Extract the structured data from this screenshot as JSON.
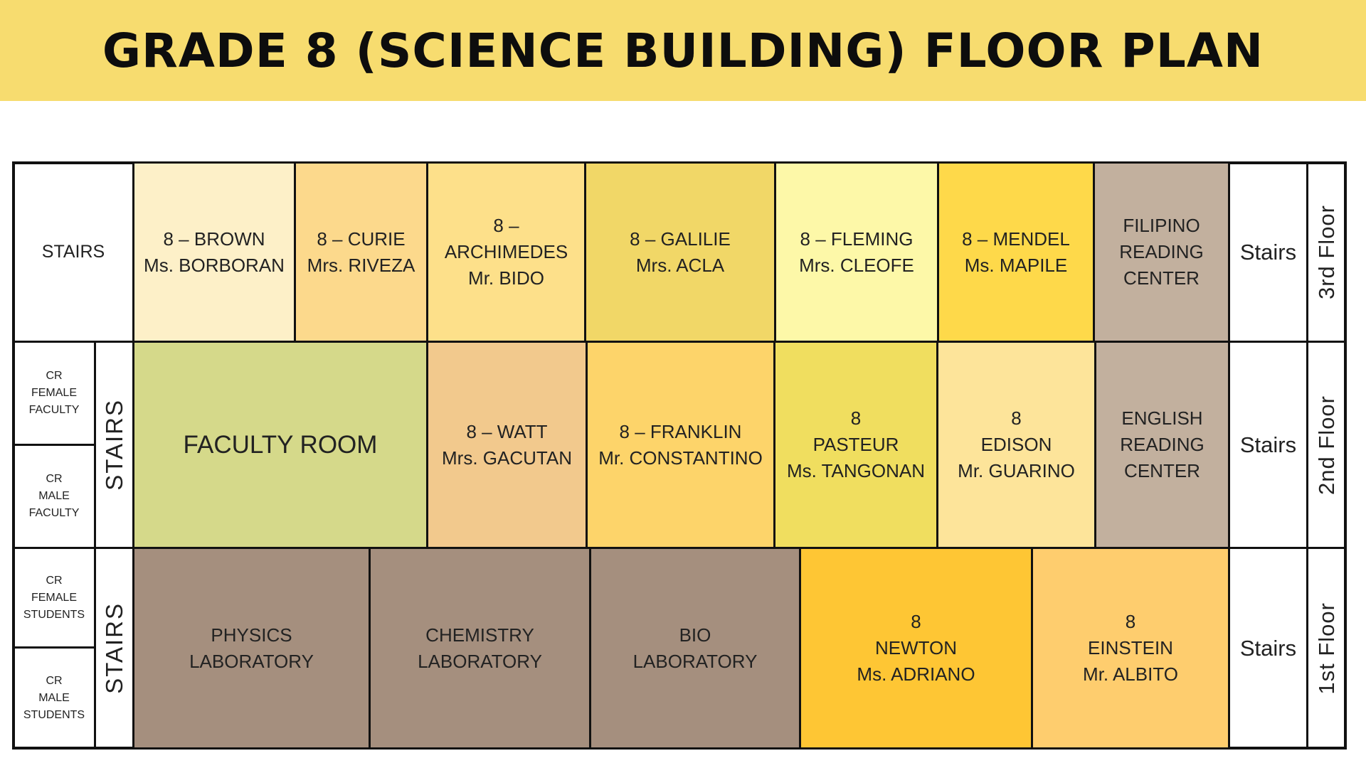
{
  "title": "GRADE 8 (SCIENCE BUILDING) FLOOR PLAN",
  "colors": {
    "banner": "#f7dc6f",
    "faculty_room": "#d5d98a",
    "laboratory": "#a58f7e",
    "reading_center": "#c2b09e"
  },
  "floors": {
    "third": {
      "label": "3rd Floor",
      "stairs_left": "STAIRS",
      "stairs_right": "Stairs",
      "rooms": [
        {
          "lines": [
            "8 – BROWN",
            "Ms. BORBORAN"
          ]
        },
        {
          "lines": [
            "8 – CURIE",
            "Mrs. RIVEZA"
          ]
        },
        {
          "lines": [
            "8 –",
            "ARCHIMEDES",
            "Mr. BIDO"
          ]
        },
        {
          "lines": [
            "8 – GALILIE",
            "Mrs. ACLA"
          ]
        },
        {
          "lines": [
            "8 – FLEMING",
            "Mrs. CLEOFE"
          ]
        },
        {
          "lines": [
            "8 – MENDEL",
            "Ms. MAPILE"
          ]
        },
        {
          "lines": [
            "FILIPINO",
            "READING",
            "CENTER"
          ]
        }
      ]
    },
    "second": {
      "label": "2nd Floor",
      "stairs_left": "STAIRS",
      "stairs_right": "Stairs",
      "restrooms": [
        {
          "lines": [
            "CR",
            "FEMALE",
            "FACULTY"
          ]
        },
        {
          "lines": [
            "CR",
            "MALE",
            "FACULTY"
          ]
        }
      ],
      "rooms": [
        {
          "lines": [
            "FACULTY ROOM"
          ]
        },
        {
          "lines": [
            "8 – WATT",
            "Mrs. GACUTAN"
          ]
        },
        {
          "lines": [
            "8 – FRANKLIN",
            "Mr. CONSTANTINO"
          ]
        },
        {
          "lines": [
            "8",
            "PASTEUR",
            "Ms. TANGONAN"
          ]
        },
        {
          "lines": [
            "8",
            "EDISON",
            "Mr. GUARINO"
          ]
        },
        {
          "lines": [
            "ENGLISH",
            "READING",
            "CENTER"
          ]
        }
      ]
    },
    "first": {
      "label": "1st Floor",
      "stairs_left": "STAIRS",
      "stairs_right": "Stairs",
      "restrooms": [
        {
          "lines": [
            "CR",
            "FEMALE",
            "STUDENTS"
          ]
        },
        {
          "lines": [
            "CR",
            "MALE",
            "STUDENTS"
          ]
        }
      ],
      "rooms": [
        {
          "lines": [
            "PHYSICS",
            "LABORATORY"
          ]
        },
        {
          "lines": [
            "CHEMISTRY",
            "LABORATORY"
          ]
        },
        {
          "lines": [
            "BIO",
            "LABORATORY"
          ]
        },
        {
          "lines": [
            "8",
            "NEWTON",
            "Ms. ADRIANO"
          ]
        },
        {
          "lines": [
            "8",
            "EINSTEIN",
            "Mr. ALBITO"
          ]
        }
      ]
    }
  }
}
